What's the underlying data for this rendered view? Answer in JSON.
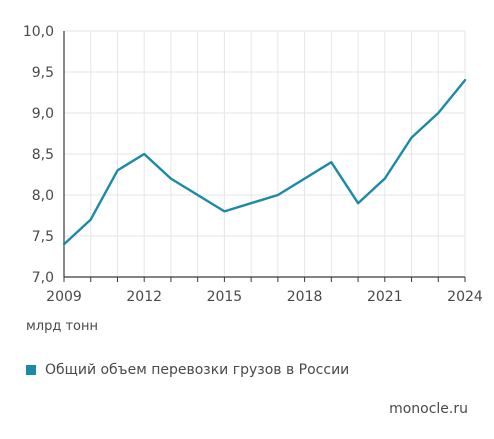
{
  "chart_data": {
    "type": "line",
    "x": [
      2009,
      2010,
      2011,
      2012,
      2013,
      2014,
      2015,
      2016,
      2017,
      2018,
      2019,
      2020,
      2021,
      2022,
      2023,
      2024
    ],
    "x_ticks": [
      "2009",
      "2012",
      "2015",
      "2018",
      "2021",
      "2024"
    ],
    "xlim": [
      2009,
      2024
    ],
    "y_ticks": [
      "7,0",
      "7,5",
      "8,0",
      "8,5",
      "9,0",
      "9,5",
      "10,0"
    ],
    "ylim": [
      7.0,
      10.0
    ],
    "series": [
      {
        "name": "Общий объем перевозки грузов в России",
        "values": [
          7.4,
          7.7,
          8.3,
          8.5,
          8.2,
          8.0,
          7.8,
          7.9,
          8.0,
          8.2,
          8.4,
          7.9,
          8.2,
          8.7,
          9.0,
          9.4
        ],
        "color": "#1a8aa8"
      }
    ],
    "unit_label": "млрд тонн",
    "grid": true,
    "legend_position": "bottom-left"
  },
  "source": "monocle.ru"
}
